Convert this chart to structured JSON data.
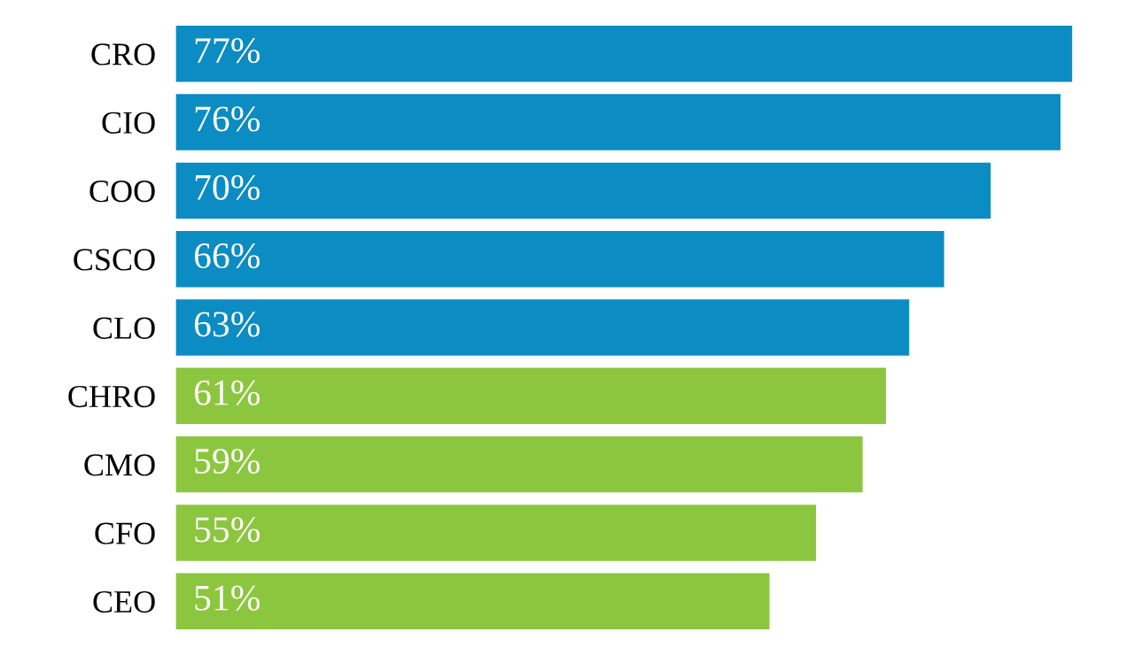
{
  "chart_data": {
    "type": "bar",
    "orientation": "horizontal",
    "categories": [
      "CRO",
      "CIO",
      "COO",
      "CSCO",
      "CLO",
      "CHRO",
      "CMO",
      "CFO",
      "CEO"
    ],
    "values": [
      77,
      76,
      70,
      66,
      63,
      61,
      59,
      55,
      51
    ],
    "value_labels": [
      "77%",
      "76%",
      "70%",
      "66%",
      "63%",
      "61%",
      "59%",
      "55%",
      "51%"
    ],
    "colors": [
      "#0b8cc2",
      "#0b8cc2",
      "#0b8cc2",
      "#0b8cc2",
      "#0b8cc2",
      "#8cc63e",
      "#8cc63e",
      "#8cc63e",
      "#8cc63e"
    ]
  }
}
